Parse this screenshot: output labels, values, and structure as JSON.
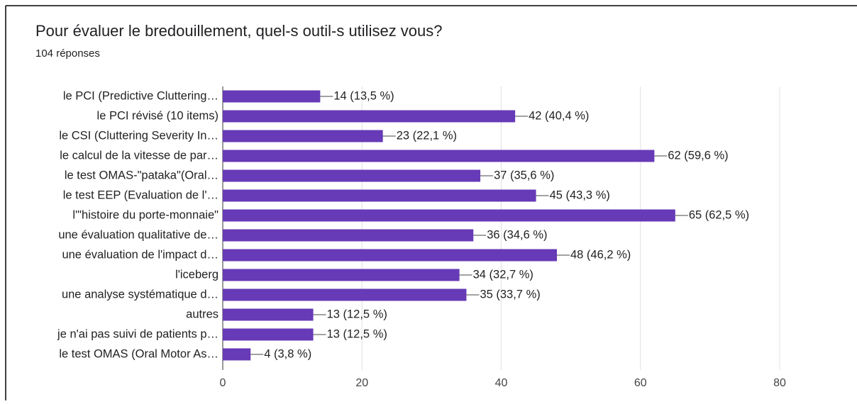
{
  "chart_data": {
    "type": "bar",
    "orientation": "horizontal",
    "title": "Pour évaluer le bredouillement, quel-s outil-s utilisez vous?",
    "subtitle": "104 réponses",
    "categories": [
      "le PCI (Predictive Cluttering…",
      "le PCI révisé (10 items)",
      "le CSI (Cluttering Severity In…",
      "le calcul de la vitesse de par…",
      "le test OMAS-\"pataka\"(Oral…",
      "le test EEP (Evaluation de l'…",
      "l'\"histoire du porte-monnaie\"",
      "une évaluation qualitative de…",
      "une évaluation de l'impact d…",
      "l'iceberg",
      "une analyse systématique d…",
      "autres",
      "je n'ai pas suivi de patients p…",
      "le test OMAS (Oral Motor As…"
    ],
    "values": [
      14,
      42,
      23,
      62,
      37,
      45,
      65,
      36,
      48,
      34,
      35,
      13,
      13,
      4
    ],
    "value_labels": [
      "14 (13,5 %)",
      "42 (40,4 %)",
      "23 (22,1 %)",
      "62 (59,6 %)",
      "37 (35,6 %)",
      "45 (43,3 %)",
      "65 (62,5 %)",
      "36 (34,6 %)",
      "48 (46,2 %)",
      "34 (32,7 %)",
      "35 (33,7 %)",
      "13 (12,5 %)",
      "13 (12,5 %)",
      "4 (3,8 %)"
    ],
    "color": "#673ab7",
    "xlim": [
      0,
      80
    ],
    "xticks": [
      0,
      20,
      40,
      60,
      80
    ],
    "grid": true
  }
}
